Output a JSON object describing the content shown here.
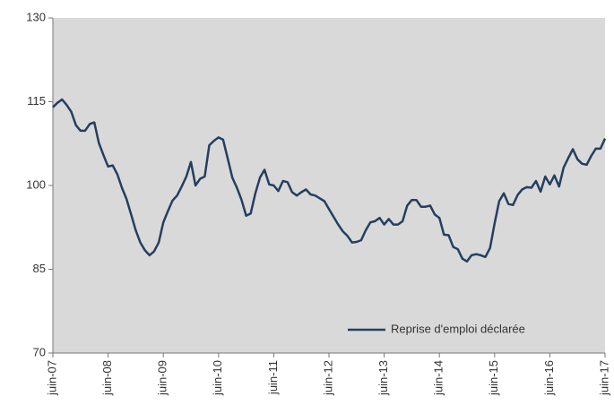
{
  "chart_data": {
    "type": "line",
    "categories": [
      "juin-07",
      null,
      null,
      null,
      null,
      null,
      null,
      null,
      null,
      null,
      null,
      null,
      "juin-08",
      null,
      null,
      null,
      null,
      null,
      null,
      null,
      null,
      null,
      null,
      null,
      "juin-09",
      null,
      null,
      null,
      null,
      null,
      null,
      null,
      null,
      null,
      null,
      null,
      "juin-10",
      null,
      null,
      null,
      null,
      null,
      null,
      null,
      null,
      null,
      null,
      null,
      "juin-11",
      null,
      null,
      null,
      null,
      null,
      null,
      null,
      null,
      null,
      null,
      null,
      "juin-12",
      null,
      null,
      null,
      null,
      null,
      null,
      null,
      null,
      null,
      null,
      null,
      "juin-13",
      null,
      null,
      null,
      null,
      null,
      null,
      null,
      null,
      null,
      null,
      null,
      "juin-14",
      null,
      null,
      null,
      null,
      null,
      null,
      null,
      null,
      null,
      null,
      null,
      "juin-15",
      null,
      null,
      null,
      null,
      null,
      null,
      null,
      null,
      null,
      null,
      null,
      "juin-16",
      null,
      null,
      null,
      null,
      null,
      null,
      null,
      null,
      null,
      null,
      null,
      "juin-17"
    ],
    "series": [
      {
        "name": "Reprise d'emploi déclarée",
        "color": "#243f60",
        "values": [
          114.0,
          114.8,
          115.4,
          114.4,
          113.2,
          110.8,
          109.8,
          109.8,
          111.0,
          111.3,
          107.6,
          105.4,
          103.4,
          103.6,
          102.0,
          99.6,
          97.6,
          94.8,
          92.0,
          89.8,
          88.4,
          87.5,
          88.2,
          89.8,
          93.4,
          95.4,
          97.3,
          98.2,
          99.8,
          101.6,
          104.2,
          100.0,
          101.2,
          101.6,
          107.2,
          108.0,
          108.6,
          108.2,
          104.8,
          101.4,
          99.6,
          97.4,
          94.6,
          95.0,
          98.6,
          101.4,
          102.8,
          100.2,
          100.0,
          99.0,
          100.8,
          100.6,
          98.8,
          98.2,
          98.8,
          99.3,
          98.4,
          98.2,
          97.7,
          97.2,
          95.8,
          94.4,
          93.0,
          91.8,
          91.0,
          89.8,
          89.9,
          90.2,
          92.0,
          93.4,
          93.6,
          94.2,
          93.0,
          94.0,
          93.0,
          93.0,
          93.6,
          96.4,
          97.4,
          97.4,
          96.2,
          96.2,
          96.4,
          94.8,
          94.2,
          91.2,
          91.1,
          89.0,
          88.6,
          86.9,
          86.4,
          87.5,
          87.7,
          87.5,
          87.2,
          88.8,
          93.2,
          97.2,
          98.6,
          96.7,
          96.5,
          98.3,
          99.3,
          99.7,
          99.6,
          100.8,
          98.9,
          101.6,
          100.2,
          101.8,
          99.8,
          103.2,
          104.9,
          106.5,
          104.7,
          103.9,
          103.7,
          105.3,
          106.6,
          106.6,
          108.4
        ]
      }
    ],
    "ylim": [
      70,
      130
    ],
    "yticks": [
      70,
      85,
      100,
      115,
      130
    ],
    "background": "#d9d9d9",
    "legend": "lower right"
  }
}
